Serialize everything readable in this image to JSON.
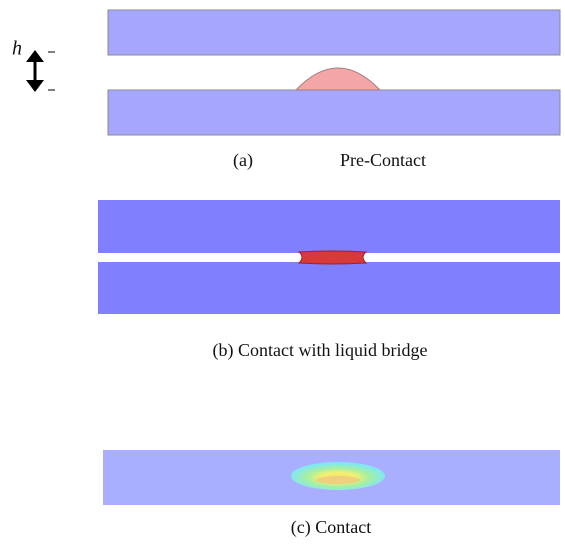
{
  "h_label": "h",
  "panels": [
    {
      "label": "(a)",
      "caption": "Pre-Contact"
    },
    {
      "caption": "(b) Contact with liquid bridge"
    },
    {
      "caption": "(c) Contact"
    }
  ]
}
